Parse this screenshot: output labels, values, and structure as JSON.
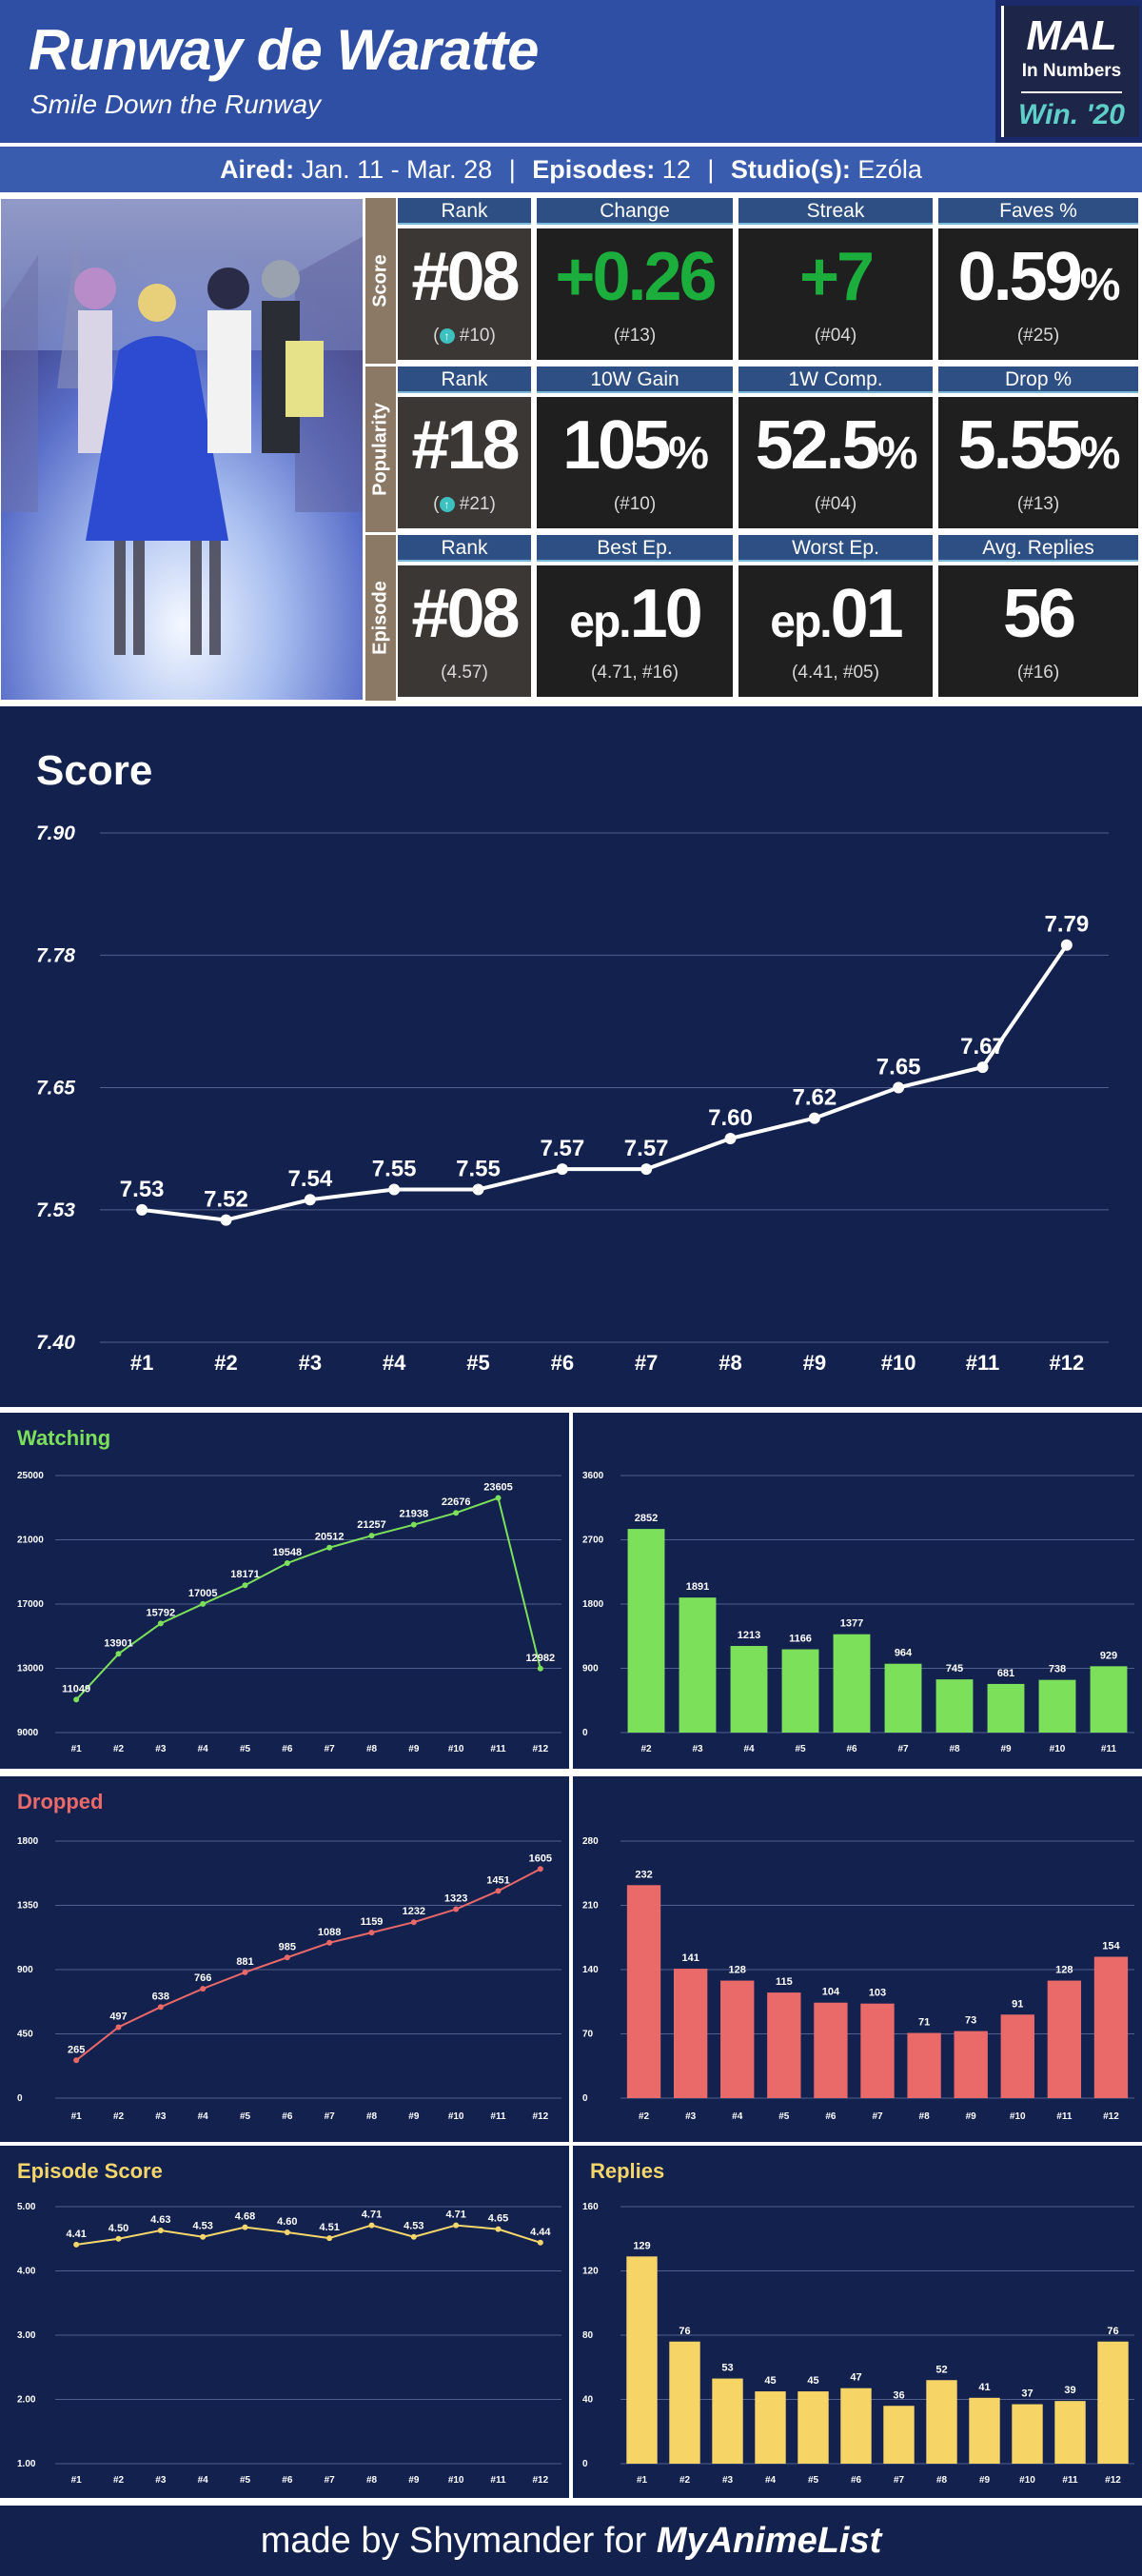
{
  "header": {
    "title": "Runway de Waratte",
    "subtitle": "Smile Down the Runway",
    "logo_main": "MAL",
    "logo_sub": "In Numbers",
    "logo_season": "Win. '20"
  },
  "info": {
    "aired_label": "Aired:",
    "aired_value": "Jan. 11 - Mar. 28",
    "episodes_label": "Episodes:",
    "episodes_value": "12",
    "studio_label": "Studio(s):",
    "studio_value": "Ezóla",
    "separator": "|"
  },
  "stats": {
    "score": {
      "label": "Score",
      "cells": [
        {
          "head": "Rank",
          "main_prefix": "#",
          "main": "08",
          "sub": "#10",
          "up": true
        },
        {
          "head": "Change",
          "main": "+0.26",
          "sub": "(#13)",
          "green": true
        },
        {
          "head": "Streak",
          "main": "+7",
          "sub": "(#04)",
          "green": true
        },
        {
          "head": "Faves %",
          "main": "0.59",
          "suffix": "%",
          "sub": "(#25)"
        }
      ]
    },
    "popularity": {
      "label": "Popularity",
      "cells": [
        {
          "head": "Rank",
          "main_prefix": "#",
          "main": "18",
          "sub": "#21",
          "up": true
        },
        {
          "head": "10W Gain",
          "main": "105",
          "suffix": "%",
          "sub": "(#10)"
        },
        {
          "head": "1W Comp.",
          "main": "52.5",
          "suffix": "%",
          "sub": "(#04)"
        },
        {
          "head": "Drop %",
          "main": "5.55",
          "suffix": "%",
          "sub": "(#13)"
        }
      ]
    },
    "episode": {
      "label": "Episode",
      "cells": [
        {
          "head": "Rank",
          "main_prefix": "#",
          "main": "08",
          "sub": "(4.57)"
        },
        {
          "head": "Best Ep.",
          "main_prefix": "ep.",
          "main": "10",
          "sub": "(4.71, #16)"
        },
        {
          "head": "Worst Ep.",
          "main_prefix": "ep.",
          "main": "01",
          "sub": "(4.41, #05)"
        },
        {
          "head": "Avg. Replies",
          "main": "56",
          "sub": "(#16)"
        }
      ]
    }
  },
  "chart_data": [
    {
      "id": "score",
      "type": "line",
      "title": "Score",
      "categories": [
        "#1",
        "#2",
        "#3",
        "#4",
        "#5",
        "#6",
        "#7",
        "#8",
        "#9",
        "#10",
        "#11",
        "#12"
      ],
      "values": [
        7.53,
        7.52,
        7.54,
        7.55,
        7.55,
        7.57,
        7.57,
        7.6,
        7.62,
        7.65,
        7.67,
        7.79
      ],
      "labels": [
        "7.53",
        "7.52",
        "7.54",
        "7.55",
        "7.55",
        "7.57",
        "7.57",
        "7.60",
        "7.62",
        "7.65",
        "7.67",
        "7.79"
      ],
      "yticks": [
        "7.90",
        "7.78",
        "7.65",
        "7.53",
        "7.40"
      ],
      "ylim": [
        7.4,
        7.9
      ],
      "color": "#ffffff",
      "grid": true
    },
    {
      "id": "watching",
      "type": "line",
      "title": "Watching",
      "categories": [
        "#1",
        "#2",
        "#3",
        "#4",
        "#5",
        "#6",
        "#7",
        "#8",
        "#9",
        "#10",
        "#11",
        "#12"
      ],
      "values": [
        11049,
        13901,
        15792,
        17005,
        18171,
        19548,
        20512,
        21257,
        21938,
        22676,
        23605,
        12982
      ],
      "yticks": [
        9000,
        13000,
        17000,
        21000,
        25000
      ],
      "ylim": [
        9000,
        25000
      ],
      "color": "#7ce05a",
      "grid": true
    },
    {
      "id": "watching-change",
      "type": "bar",
      "title": "",
      "categories": [
        "#2",
        "#3",
        "#4",
        "#5",
        "#6",
        "#7",
        "#8",
        "#9",
        "#10",
        "#11"
      ],
      "values": [
        2852,
        1891,
        1213,
        1166,
        1377,
        964,
        745,
        681,
        738,
        929
      ],
      "yticks": [
        0,
        900,
        1800,
        2700,
        3600
      ],
      "ylim": [
        0,
        3600
      ],
      "color": "#7ce05a",
      "grid": true
    },
    {
      "id": "dropped",
      "type": "line",
      "title": "Dropped",
      "categories": [
        "#1",
        "#2",
        "#3",
        "#4",
        "#5",
        "#6",
        "#7",
        "#8",
        "#9",
        "#10",
        "#11",
        "#12"
      ],
      "values": [
        265,
        497,
        638,
        766,
        881,
        985,
        1088,
        1159,
        1232,
        1323,
        1451,
        1605
      ],
      "yticks": [
        0,
        450,
        900,
        1350,
        1800
      ],
      "ylim": [
        0,
        1800
      ],
      "color": "#e86868",
      "grid": true
    },
    {
      "id": "dropped-change",
      "type": "bar",
      "title": "",
      "categories": [
        "#2",
        "#3",
        "#4",
        "#5",
        "#6",
        "#7",
        "#8",
        "#9",
        "#10",
        "#11",
        "#12"
      ],
      "values": [
        232,
        141,
        128,
        115,
        104,
        103,
        71,
        73,
        91,
        128,
        154
      ],
      "yticks": [
        0,
        70,
        140,
        210,
        280
      ],
      "ylim": [
        0,
        280
      ],
      "color": "#ea6a6a",
      "grid": true
    },
    {
      "id": "episode-score",
      "type": "line",
      "title": "Episode Score",
      "categories": [
        "#1",
        "#2",
        "#3",
        "#4",
        "#5",
        "#6",
        "#7",
        "#8",
        "#9",
        "#10",
        "#11",
        "#12"
      ],
      "values": [
        4.41,
        4.5,
        4.63,
        4.53,
        4.68,
        4.6,
        4.51,
        4.71,
        4.53,
        4.71,
        4.65,
        4.44
      ],
      "labels": [
        "4.41",
        "4.50",
        "4.63",
        "4.53",
        "4.68",
        "4.60",
        "4.51",
        "4.71",
        "4.53",
        "4.71",
        "4.65",
        "4.44"
      ],
      "yticks": [
        "1.00",
        "2.00",
        "3.00",
        "4.00",
        "5.00"
      ],
      "ylim": [
        1.0,
        5.0
      ],
      "color": "#f5d66a",
      "grid": true
    },
    {
      "id": "replies",
      "type": "bar",
      "title": "Replies",
      "categories": [
        "#1",
        "#2",
        "#3",
        "#4",
        "#5",
        "#6",
        "#7",
        "#8",
        "#9",
        "#10",
        "#11",
        "#12"
      ],
      "values": [
        129,
        76,
        53,
        45,
        45,
        47,
        36,
        52,
        41,
        37,
        39,
        76
      ],
      "yticks": [
        0,
        40,
        80,
        120,
        160
      ],
      "ylim": [
        0,
        160
      ],
      "color": "#f7d466",
      "grid": true
    }
  ],
  "colors": {
    "title_watching": "#7ce05a",
    "title_dropped": "#ea6a6a",
    "title_episode": "#f5d66a",
    "title_replies": "#f5d66a"
  },
  "footer": {
    "text": "made by Shymander for",
    "brand": "MyAnimeList"
  }
}
